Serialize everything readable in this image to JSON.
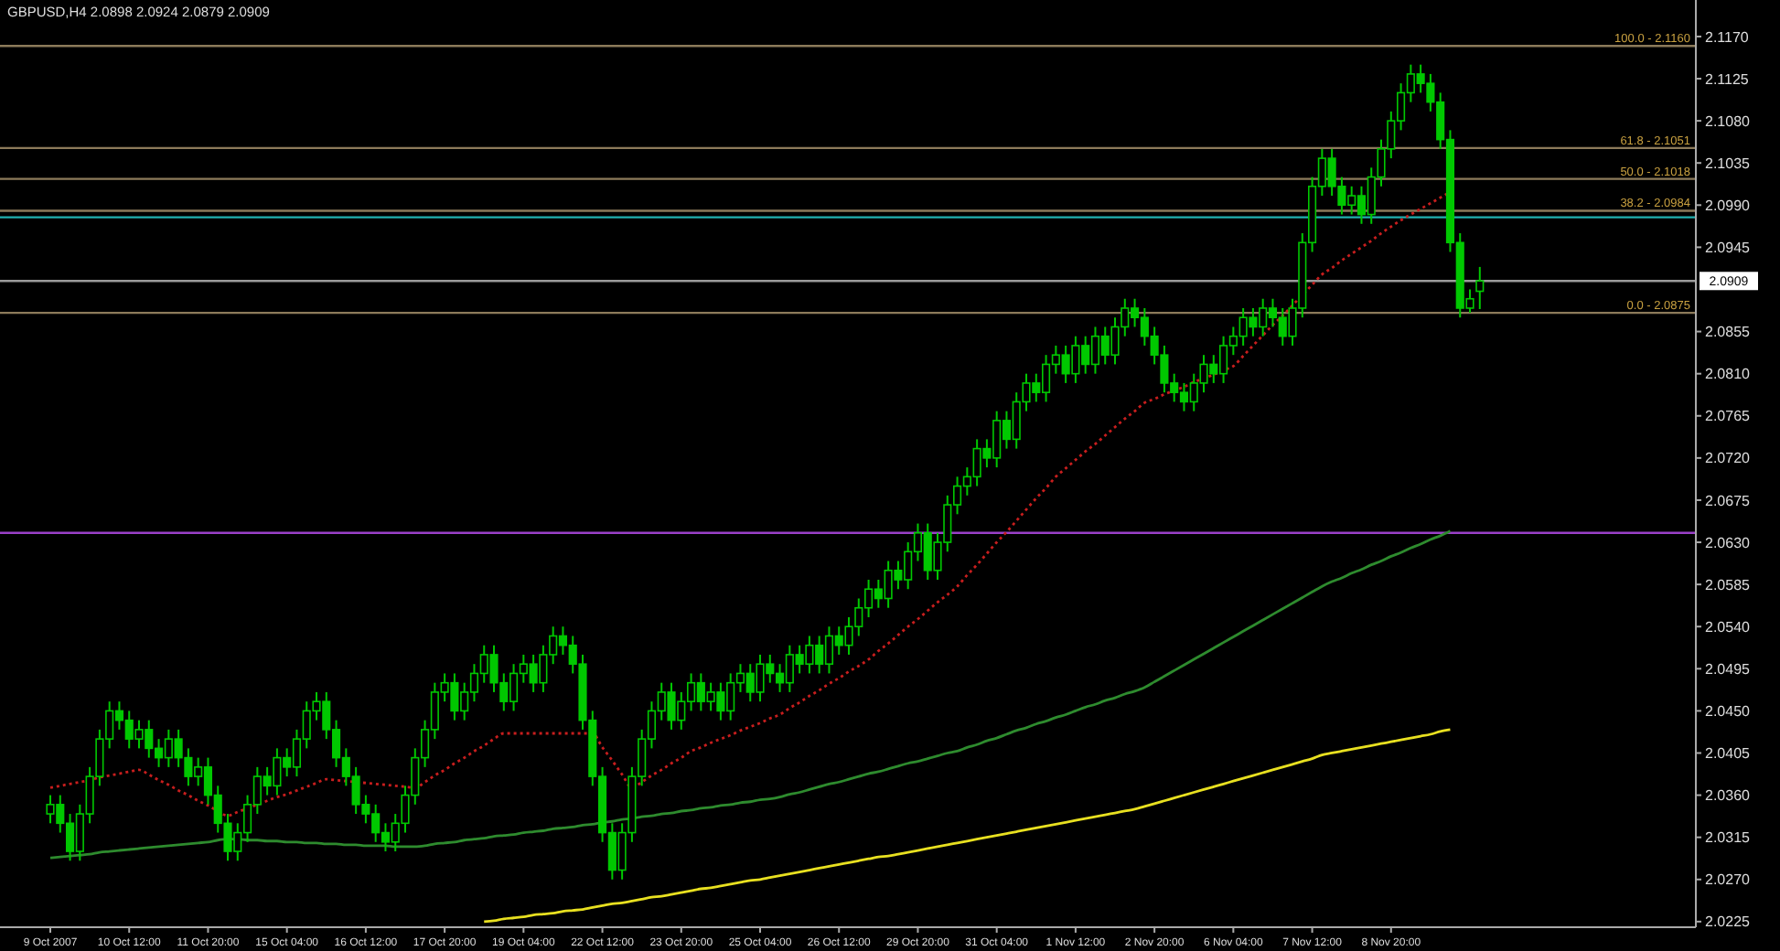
{
  "chart_data": {
    "type": "candlestick",
    "title": "GBPUSD,H4 2.0898 2.0924 2.0879 2.0909",
    "color": "#00c800",
    "categories": [
      "9 Oct 2007",
      null,
      null,
      null,
      null,
      null,
      null,
      null,
      "10 Oct 12:00",
      null,
      null,
      null,
      null,
      null,
      null,
      null,
      "11 Oct 20:00",
      null,
      null,
      null,
      null,
      null,
      null,
      null,
      "15 Oct 04:00",
      null,
      null,
      null,
      null,
      null,
      null,
      null,
      "16 Oct 12:00",
      null,
      null,
      null,
      null,
      null,
      null,
      null,
      "17 Oct 20:00",
      null,
      null,
      null,
      null,
      null,
      null,
      null,
      "19 Oct 04:00",
      null,
      null,
      null,
      null,
      null,
      null,
      null,
      "22 Oct 12:00",
      null,
      null,
      null,
      null,
      null,
      null,
      null,
      "23 Oct 20:00",
      null,
      null,
      null,
      null,
      null,
      null,
      null,
      "25 Oct 04:00",
      null,
      null,
      null,
      null,
      null,
      null,
      null,
      "26 Oct 12:00",
      null,
      null,
      null,
      null,
      null,
      null,
      null,
      "29 Oct 20:00",
      null,
      null,
      null,
      null,
      null,
      null,
      null,
      "31 Oct 04:00",
      null,
      null,
      null,
      null,
      null,
      null,
      null,
      "1 Nov 12:00",
      null,
      null,
      null,
      null,
      null,
      null,
      null,
      "2 Nov 20:00",
      null,
      null,
      null,
      null,
      null,
      null,
      null,
      "6 Nov 04:00",
      null,
      null,
      null,
      null,
      null,
      null,
      null,
      "7 Nov 12:00",
      null,
      null,
      null,
      null,
      null,
      null,
      null,
      "8 Nov 20:00",
      null,
      null,
      null,
      null,
      null,
      null,
      null,
      null,
      null
    ],
    "ohlc": [
      [
        2.034,
        2.036,
        2.033,
        2.035
      ],
      [
        2.035,
        2.036,
        2.032,
        2.033
      ],
      [
        2.033,
        2.034,
        2.029,
        2.03
      ],
      [
        2.03,
        2.035,
        2.029,
        2.034
      ],
      [
        2.034,
        2.039,
        2.033,
        2.038
      ],
      [
        2.038,
        2.043,
        2.037,
        2.042
      ],
      [
        2.042,
        2.046,
        2.041,
        2.045
      ],
      [
        2.045,
        2.046,
        2.043,
        2.044
      ],
      [
        2.044,
        2.045,
        2.041,
        2.042
      ],
      [
        2.042,
        2.044,
        2.041,
        2.043
      ],
      [
        2.043,
        2.044,
        2.04,
        2.041
      ],
      [
        2.041,
        2.042,
        2.039,
        2.04
      ],
      [
        2.04,
        2.043,
        2.039,
        2.042
      ],
      [
        2.042,
        2.043,
        2.039,
        2.04
      ],
      [
        2.04,
        2.041,
        2.037,
        2.038
      ],
      [
        2.038,
        2.04,
        2.037,
        2.039
      ],
      [
        2.039,
        2.04,
        2.035,
        2.036
      ],
      [
        2.036,
        2.037,
        2.032,
        2.033
      ],
      [
        2.033,
        2.034,
        2.029,
        2.03
      ],
      [
        2.03,
        2.033,
        2.029,
        2.032
      ],
      [
        2.032,
        2.036,
        2.031,
        2.035
      ],
      [
        2.035,
        2.039,
        2.034,
        2.038
      ],
      [
        2.038,
        2.039,
        2.036,
        2.037
      ],
      [
        2.037,
        2.041,
        2.036,
        2.04
      ],
      [
        2.04,
        2.041,
        2.038,
        2.039
      ],
      [
        2.039,
        2.043,
        2.038,
        2.042
      ],
      [
        2.042,
        2.046,
        2.041,
        2.045
      ],
      [
        2.045,
        2.047,
        2.044,
        2.046
      ],
      [
        2.046,
        2.047,
        2.042,
        2.043
      ],
      [
        2.043,
        2.044,
        2.039,
        2.04
      ],
      [
        2.04,
        2.041,
        2.037,
        2.038
      ],
      [
        2.038,
        2.039,
        2.034,
        2.035
      ],
      [
        2.035,
        2.036,
        2.033,
        2.034
      ],
      [
        2.034,
        2.035,
        2.031,
        2.032
      ],
      [
        2.032,
        2.033,
        2.03,
        2.031
      ],
      [
        2.031,
        2.034,
        2.03,
        2.033
      ],
      [
        2.033,
        2.037,
        2.032,
        2.036
      ],
      [
        2.036,
        2.041,
        2.035,
        2.04
      ],
      [
        2.04,
        2.044,
        2.039,
        2.043
      ],
      [
        2.043,
        2.048,
        2.042,
        2.047
      ],
      [
        2.047,
        2.049,
        2.046,
        2.048
      ],
      [
        2.048,
        2.049,
        2.044,
        2.045
      ],
      [
        2.045,
        2.048,
        2.044,
        2.047
      ],
      [
        2.047,
        2.05,
        2.046,
        2.049
      ],
      [
        2.049,
        2.052,
        2.048,
        2.051
      ],
      [
        2.051,
        2.052,
        2.047,
        2.048
      ],
      [
        2.048,
        2.049,
        2.045,
        2.046
      ],
      [
        2.046,
        2.05,
        2.045,
        2.049
      ],
      [
        2.049,
        2.051,
        2.048,
        2.05
      ],
      [
        2.05,
        2.051,
        2.047,
        2.048
      ],
      [
        2.048,
        2.052,
        2.047,
        2.051
      ],
      [
        2.051,
        2.054,
        2.05,
        2.053
      ],
      [
        2.053,
        2.054,
        2.051,
        2.052
      ],
      [
        2.052,
        2.053,
        2.049,
        2.05
      ],
      [
        2.05,
        2.051,
        2.043,
        2.044
      ],
      [
        2.044,
        2.045,
        2.037,
        2.038
      ],
      [
        2.038,
        2.039,
        2.031,
        2.032
      ],
      [
        2.032,
        2.033,
        2.027,
        2.028
      ],
      [
        2.028,
        2.033,
        2.027,
        2.032
      ],
      [
        2.032,
        2.039,
        2.031,
        2.038
      ],
      [
        2.038,
        2.043,
        2.037,
        2.042
      ],
      [
        2.042,
        2.046,
        2.041,
        2.045
      ],
      [
        2.045,
        2.048,
        2.044,
        2.047
      ],
      [
        2.047,
        2.048,
        2.043,
        2.044
      ],
      [
        2.044,
        2.047,
        2.043,
        2.046
      ],
      [
        2.046,
        2.049,
        2.045,
        2.048
      ],
      [
        2.048,
        2.049,
        2.045,
        2.046
      ],
      [
        2.046,
        2.048,
        2.045,
        2.047
      ],
      [
        2.047,
        2.048,
        2.044,
        2.045
      ],
      [
        2.045,
        2.049,
        2.044,
        2.048
      ],
      [
        2.048,
        2.05,
        2.047,
        2.049
      ],
      [
        2.049,
        2.05,
        2.046,
        2.047
      ],
      [
        2.047,
        2.051,
        2.046,
        2.05
      ],
      [
        2.05,
        2.051,
        2.048,
        2.049
      ],
      [
        2.049,
        2.05,
        2.047,
        2.048
      ],
      [
        2.048,
        2.052,
        2.047,
        2.051
      ],
      [
        2.051,
        2.052,
        2.049,
        2.05
      ],
      [
        2.05,
        2.053,
        2.049,
        2.052
      ],
      [
        2.052,
        2.053,
        2.049,
        2.05
      ],
      [
        2.05,
        2.054,
        2.049,
        2.053
      ],
      [
        2.053,
        2.054,
        2.051,
        2.052
      ],
      [
        2.052,
        2.055,
        2.051,
        2.054
      ],
      [
        2.054,
        2.057,
        2.053,
        2.056
      ],
      [
        2.056,
        2.059,
        2.055,
        2.058
      ],
      [
        2.058,
        2.059,
        2.056,
        2.057
      ],
      [
        2.057,
        2.061,
        2.056,
        2.06
      ],
      [
        2.06,
        2.061,
        2.058,
        2.059
      ],
      [
        2.059,
        2.063,
        2.058,
        2.062
      ],
      [
        2.062,
        2.065,
        2.061,
        2.064
      ],
      [
        2.064,
        2.065,
        2.059,
        2.06
      ],
      [
        2.06,
        2.064,
        2.059,
        2.063
      ],
      [
        2.063,
        2.068,
        2.062,
        2.067
      ],
      [
        2.067,
        2.07,
        2.066,
        2.069
      ],
      [
        2.069,
        2.071,
        2.068,
        2.07
      ],
      [
        2.07,
        2.074,
        2.069,
        2.073
      ],
      [
        2.073,
        2.074,
        2.071,
        2.072
      ],
      [
        2.072,
        2.077,
        2.071,
        2.076
      ],
      [
        2.076,
        2.077,
        2.073,
        2.074
      ],
      [
        2.074,
        2.079,
        2.073,
        2.078
      ],
      [
        2.078,
        2.081,
        2.077,
        2.08
      ],
      [
        2.08,
        2.081,
        2.078,
        2.079
      ],
      [
        2.079,
        2.083,
        2.078,
        2.082
      ],
      [
        2.082,
        2.084,
        2.081,
        2.083
      ],
      [
        2.083,
        2.084,
        2.08,
        2.081
      ],
      [
        2.081,
        2.085,
        2.08,
        2.084
      ],
      [
        2.084,
        2.085,
        2.081,
        2.082
      ],
      [
        2.082,
        2.086,
        2.081,
        2.085
      ],
      [
        2.085,
        2.086,
        2.082,
        2.083
      ],
      [
        2.083,
        2.087,
        2.082,
        2.086
      ],
      [
        2.086,
        2.089,
        2.085,
        2.088
      ],
      [
        2.088,
        2.089,
        2.086,
        2.087
      ],
      [
        2.087,
        2.088,
        2.084,
        2.085
      ],
      [
        2.085,
        2.086,
        2.082,
        2.083
      ],
      [
        2.083,
        2.084,
        2.079,
        2.08
      ],
      [
        2.08,
        2.081,
        2.078,
        2.079
      ],
      [
        2.079,
        2.08,
        2.077,
        2.078
      ],
      [
        2.078,
        2.081,
        2.077,
        2.08
      ],
      [
        2.08,
        2.083,
        2.079,
        2.082
      ],
      [
        2.082,
        2.083,
        2.08,
        2.081
      ],
      [
        2.081,
        2.085,
        2.08,
        2.084
      ],
      [
        2.084,
        2.086,
        2.083,
        2.085
      ],
      [
        2.085,
        2.088,
        2.084,
        2.087
      ],
      [
        2.087,
        2.088,
        2.085,
        2.086
      ],
      [
        2.086,
        2.089,
        2.085,
        2.088
      ],
      [
        2.088,
        2.089,
        2.086,
        2.087
      ],
      [
        2.087,
        2.088,
        2.084,
        2.085
      ],
      [
        2.085,
        2.089,
        2.084,
        2.088
      ],
      [
        2.088,
        2.096,
        2.087,
        2.095
      ],
      [
        2.095,
        2.102,
        2.094,
        2.101
      ],
      [
        2.101,
        2.105,
        2.1,
        2.104
      ],
      [
        2.104,
        2.105,
        2.1,
        2.101
      ],
      [
        2.101,
        2.102,
        2.098,
        2.099
      ],
      [
        2.099,
        2.101,
        2.098,
        2.1
      ],
      [
        2.1,
        2.101,
        2.097,
        2.098
      ],
      [
        2.098,
        2.103,
        2.097,
        2.102
      ],
      [
        2.102,
        2.106,
        2.101,
        2.105
      ],
      [
        2.105,
        2.109,
        2.104,
        2.108
      ],
      [
        2.108,
        2.112,
        2.107,
        2.111
      ],
      [
        2.111,
        2.114,
        2.11,
        2.113
      ],
      [
        2.113,
        2.114,
        2.111,
        2.112
      ],
      [
        2.112,
        2.113,
        2.109,
        2.11
      ],
      [
        2.11,
        2.111,
        2.105,
        2.106
      ],
      [
        2.106,
        2.107,
        2.094,
        2.095
      ],
      [
        2.095,
        2.096,
        2.087,
        2.088
      ],
      [
        2.088,
        2.09,
        2.0875,
        2.089
      ],
      [
        2.0898,
        2.0924,
        2.0879,
        2.0909
      ]
    ],
    "series": [
      {
        "type": "line",
        "color": "#2e8b2e",
        "line_style": "solid",
        "values": [
          2.0293,
          2.0294,
          2.0295,
          2.0296,
          2.0297,
          2.0299,
          2.03,
          2.0301,
          2.0302,
          2.0303,
          2.0304,
          2.0305,
          2.0306,
          2.0307,
          2.0308,
          2.0309,
          2.031,
          2.0312,
          2.0313,
          2.0313,
          2.0312,
          2.0312,
          2.0311,
          2.0311,
          2.031,
          2.031,
          2.0309,
          2.0309,
          2.0308,
          2.0308,
          2.0307,
          2.0307,
          2.0306,
          2.0306,
          2.0306,
          2.0305,
          2.0305,
          2.0305,
          2.0306,
          2.0308,
          2.0309,
          2.031,
          2.0312,
          2.0313,
          2.0314,
          2.0316,
          2.0317,
          2.0318,
          2.032,
          2.0321,
          2.0322,
          2.0324,
          2.0325,
          2.0326,
          2.0328,
          2.0329,
          2.0331,
          2.0332,
          2.0334,
          2.0335,
          2.0337,
          2.0338,
          2.034,
          2.0341,
          2.0343,
          2.0344,
          2.0346,
          2.0347,
          2.0349,
          2.035,
          2.0352,
          2.0353,
          2.0355,
          2.0356,
          2.0358,
          2.0361,
          2.0363,
          2.0366,
          2.0369,
          2.0372,
          2.0374,
          2.0377,
          2.038,
          2.0383,
          2.0385,
          2.0388,
          2.0391,
          2.0394,
          2.0396,
          2.0399,
          2.0402,
          2.0405,
          2.0407,
          2.0411,
          2.0414,
          2.0418,
          2.0421,
          2.0425,
          2.0429,
          2.0432,
          2.0436,
          2.0439,
          2.0443,
          2.0446,
          2.045,
          2.0454,
          2.0457,
          2.0461,
          2.0464,
          2.0468,
          2.0471,
          2.0475,
          2.0481,
          2.0487,
          2.0493,
          2.0499,
          2.0505,
          2.0511,
          2.0517,
          2.0523,
          2.0529,
          2.0535,
          2.0541,
          2.0547,
          2.0553,
          2.0559,
          2.0565,
          2.0571,
          2.0577,
          2.0583,
          2.0588,
          2.0592,
          2.0597,
          2.0601,
          2.0606,
          2.061,
          2.0615,
          2.0619,
          2.0624,
          2.0628,
          2.0633,
          2.0637,
          2.0642,
          null,
          null,
          null
        ]
      },
      {
        "type": "line",
        "color": "#e8e020",
        "line_style": "solid",
        "values": [
          null,
          null,
          null,
          null,
          null,
          null,
          null,
          null,
          null,
          null,
          null,
          null,
          null,
          null,
          null,
          null,
          null,
          null,
          null,
          null,
          null,
          null,
          null,
          null,
          null,
          null,
          null,
          null,
          null,
          null,
          null,
          null,
          null,
          null,
          null,
          null,
          null,
          null,
          null,
          null,
          null,
          null,
          null,
          null,
          2.0225,
          2.0226,
          2.0228,
          2.0229,
          2.023,
          2.0232,
          2.0233,
          2.0234,
          2.0236,
          2.0237,
          2.0238,
          2.024,
          2.0242,
          2.0244,
          2.0245,
          2.0247,
          2.0249,
          2.0251,
          2.0252,
          2.0254,
          2.0256,
          2.0258,
          2.026,
          2.0261,
          2.0263,
          2.0265,
          2.0267,
          2.0269,
          2.027,
          2.0272,
          2.0274,
          2.0276,
          2.0278,
          2.028,
          2.0282,
          2.0284,
          2.0286,
          2.0288,
          2.029,
          2.0292,
          2.0294,
          2.0295,
          2.0297,
          2.0299,
          2.0301,
          2.0303,
          2.0305,
          2.0307,
          2.0309,
          2.0311,
          2.0313,
          2.0315,
          2.0317,
          2.0319,
          2.0321,
          2.0323,
          2.0325,
          2.0327,
          2.0329,
          2.0331,
          2.0333,
          2.0335,
          2.0337,
          2.0339,
          2.0341,
          2.0343,
          2.0345,
          2.0348,
          2.0351,
          2.0354,
          2.0357,
          2.036,
          2.0363,
          2.0366,
          2.0369,
          2.0372,
          2.0375,
          2.0378,
          2.0381,
          2.0384,
          2.0387,
          2.039,
          2.0393,
          2.0396,
          2.0399,
          2.0403,
          2.0405,
          2.0407,
          2.0409,
          2.0411,
          2.0413,
          2.0415,
          2.0417,
          2.0419,
          2.0421,
          2.0423,
          2.0425,
          2.0428,
          2.043,
          null,
          null,
          null
        ]
      },
      {
        "type": "line",
        "color": "#c81e1e",
        "line_style": "dotted",
        "values": [
          2.0368,
          2.037,
          2.0372,
          2.0374,
          2.0376,
          2.0379,
          2.0381,
          2.0383,
          2.0385,
          2.0387,
          2.0382,
          2.0376,
          2.0371,
          2.0365,
          2.036,
          2.0354,
          2.0349,
          2.0343,
          2.0338,
          2.0342,
          2.0346,
          2.035,
          2.0354,
          2.0358,
          2.0361,
          2.0365,
          2.0369,
          2.0373,
          2.0377,
          2.0376,
          2.0375,
          2.0374,
          2.0373,
          2.0372,
          2.0371,
          2.037,
          2.0369,
          2.0368,
          2.0374,
          2.0381,
          2.0387,
          2.0394,
          2.04,
          2.0407,
          2.0413,
          2.042,
          2.0426,
          2.0426,
          2.0426,
          2.0426,
          2.0426,
          2.0426,
          2.0426,
          2.0426,
          2.0426,
          2.0426,
          2.0411,
          2.0397,
          2.0382,
          2.0368,
          2.0374,
          2.0381,
          2.0387,
          2.0394,
          2.04,
          2.0407,
          2.0411,
          2.0416,
          2.042,
          2.0424,
          2.0429,
          2.0433,
          2.0437,
          2.0442,
          2.0446,
          2.0453,
          2.0459,
          2.0466,
          2.0472,
          2.0479,
          2.0485,
          2.0492,
          2.0498,
          2.0505,
          2.0514,
          2.0522,
          2.0531,
          2.054,
          2.0548,
          2.0557,
          2.0566,
          2.0574,
          2.0583,
          2.0595,
          2.0606,
          2.0618,
          2.063,
          2.0641,
          2.0653,
          2.0665,
          2.0677,
          2.0688,
          2.07,
          2.0709,
          2.0718,
          2.0727,
          2.0735,
          2.0744,
          2.0753,
          2.0762,
          2.077,
          2.0779,
          2.0783,
          2.0788,
          2.0792,
          2.0796,
          2.0801,
          2.0805,
          2.0809,
          2.0814,
          2.0818,
          2.0829,
          2.084,
          2.0851,
          2.0862,
          2.0872,
          2.0883,
          2.0894,
          2.0905,
          2.0916,
          2.0923,
          2.0931,
          2.0938,
          2.0945,
          2.0952,
          2.096,
          2.0967,
          2.0974,
          2.098,
          2.0986,
          2.0992,
          2.0998,
          2.1004,
          null,
          null,
          null
        ]
      }
    ],
    "ylim": [
      2.0219,
      2.1209
    ],
    "yticks": [
      {
        "value": 2.0225,
        "label": "2.0225"
      },
      {
        "value": 2.027,
        "label": "2.0270"
      },
      {
        "value": 2.0315,
        "label": "2.0315"
      },
      {
        "value": 2.036,
        "label": "2.0360"
      },
      {
        "value": 2.0405,
        "label": "2.0405"
      },
      {
        "value": 2.045,
        "label": "2.0450"
      },
      {
        "value": 2.0495,
        "label": "2.0495"
      },
      {
        "value": 2.054,
        "label": "2.0540"
      },
      {
        "value": 2.0585,
        "label": "2.0585"
      },
      {
        "value": 2.063,
        "label": "2.0630"
      },
      {
        "value": 2.0675,
        "label": "2.0675"
      },
      {
        "value": 2.072,
        "label": "2.0720"
      },
      {
        "value": 2.0765,
        "label": "2.0765"
      },
      {
        "value": 2.081,
        "label": "2.0810"
      },
      {
        "value": 2.0855,
        "label": "2.0855"
      },
      {
        "value": 2.0945,
        "label": "2.0945"
      },
      {
        "value": 2.099,
        "label": "2.0990"
      },
      {
        "value": 2.1035,
        "label": "2.1035"
      },
      {
        "value": 2.108,
        "label": "2.1080"
      },
      {
        "value": 2.1125,
        "label": "2.1125"
      },
      {
        "value": 2.117,
        "label": "2.1170"
      }
    ],
    "ref_lines": [
      {
        "axis": "y",
        "value": 2.0977,
        "color": "#20b0b0"
      },
      {
        "axis": "y",
        "value": 2.0909,
        "label": "2.0909",
        "color": "#9a9a9a"
      },
      {
        "axis": "y",
        "value": 2.064,
        "color": "#9a40c8"
      },
      {
        "axis": "y",
        "value": 2.116,
        "color": "#8c7a5a"
      },
      {
        "axis": "y",
        "value": 2.1051,
        "color": "#8c7a5a"
      },
      {
        "axis": "y",
        "value": 2.1018,
        "color": "#8c7a5a"
      },
      {
        "axis": "y",
        "value": 2.0984,
        "color": "#8c7a5a"
      },
      {
        "axis": "y",
        "value": 2.0875,
        "color": "#8c7a5a"
      }
    ],
    "annotations": [
      "100.0 - 2.1160",
      "61.8 - 2.1051",
      "50.0 - 2.1018",
      "38.2 - 2.0984",
      "0.0 - 2.0875"
    ]
  }
}
